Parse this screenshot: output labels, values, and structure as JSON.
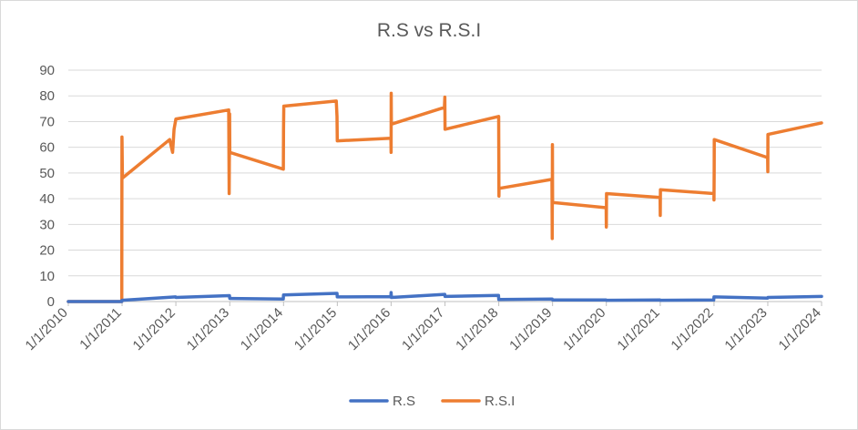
{
  "chart_data": {
    "type": "line",
    "title": "R.S vs R.S.I",
    "xlabel": "",
    "ylabel": "",
    "ylim": [
      0,
      90
    ],
    "yticks": [
      0,
      10,
      20,
      30,
      40,
      50,
      60,
      70,
      80,
      90
    ],
    "xlim": [
      "1/1/2010",
      "1/1/2024"
    ],
    "xticks": [
      "1/1/2010",
      "1/1/2011",
      "1/1/2012",
      "1/1/2013",
      "1/1/2014",
      "1/1/2015",
      "1/1/2016",
      "1/1/2017",
      "1/1/2018",
      "1/1/2019",
      "1/1/2020",
      "1/1/2021",
      "1/1/2022",
      "1/1/2023",
      "1/1/2024"
    ],
    "grid": true,
    "legend": "bottom",
    "colors": {
      "R.S": "#4472c4",
      "R.S.I": "#ed7d31",
      "grid": "#d9d9d9",
      "text": "#595959"
    },
    "series": [
      {
        "name": "R.S",
        "points": [
          [
            "1/1/2010",
            0
          ],
          [
            "12/30/2010",
            0
          ],
          [
            "1/1/2011",
            0.5
          ],
          [
            "12/30/2011",
            1.8
          ],
          [
            "1/1/2012",
            1.6
          ],
          [
            "12/30/2012",
            2.3
          ],
          [
            "1/1/2013",
            1.2
          ],
          [
            "12/30/2013",
            1.0
          ],
          [
            "1/1/2014",
            2.6
          ],
          [
            "12/30/2014",
            3.2
          ],
          [
            "1/1/2015",
            1.8
          ],
          [
            "12/30/2015",
            1.9
          ],
          [
            "1/1/2016",
            3.5
          ],
          [
            "1/3/2016",
            1.6
          ],
          [
            "12/30/2016",
            2.8
          ],
          [
            "1/1/2017",
            2.0
          ],
          [
            "12/30/2017",
            2.4
          ],
          [
            "1/1/2018",
            0.8
          ],
          [
            "12/30/2018",
            1.0
          ],
          [
            "1/1/2019",
            0.6
          ],
          [
            "12/30/2019",
            0.6
          ],
          [
            "1/1/2020",
            0.5
          ],
          [
            "12/30/2020",
            0.6
          ],
          [
            "1/1/2021",
            0.5
          ],
          [
            "12/30/2021",
            0.6
          ],
          [
            "1/1/2022",
            1.8
          ],
          [
            "12/30/2022",
            1.3
          ],
          [
            "1/1/2023",
            1.6
          ],
          [
            "1/1/2024",
            2.0
          ]
        ]
      },
      {
        "name": "R.S.I",
        "points": [
          [
            "1/1/2010",
            0
          ],
          [
            "12/30/2010",
            0
          ],
          [
            "12/31/2010",
            64
          ],
          [
            "1/1/2011",
            62
          ],
          [
            "1/3/2011",
            48
          ],
          [
            "11/20/2011",
            63
          ],
          [
            "12/10/2011",
            58
          ],
          [
            "12/20/2011",
            67
          ],
          [
            "1/1/2012",
            71
          ],
          [
            "12/25/2012",
            74.5
          ],
          [
            "12/28/2012",
            42
          ],
          [
            "12/31/2012",
            73
          ],
          [
            "1/1/2013",
            58
          ],
          [
            "12/31/2013",
            51.5
          ],
          [
            "1/1/2014",
            67
          ],
          [
            "1/3/2014",
            76
          ],
          [
            "12/25/2014",
            78
          ],
          [
            "12/30/2014",
            72
          ],
          [
            "1/1/2015",
            62.5
          ],
          [
            "12/31/2015",
            63.5
          ],
          [
            "1/1/2016",
            58
          ],
          [
            "1/2/2016",
            81
          ],
          [
            "1/3/2016",
            69
          ],
          [
            "12/28/2016",
            75.5
          ],
          [
            "12/31/2016",
            79.5
          ],
          [
            "1/1/2017",
            67
          ],
          [
            "12/31/2017",
            72
          ],
          [
            "1/1/2018",
            61
          ],
          [
            "1/2/2018",
            41
          ],
          [
            "1/3/2018",
            44
          ],
          [
            "12/28/2018",
            47.5
          ],
          [
            "12/30/2018",
            24.5
          ],
          [
            "12/31/2018",
            61
          ],
          [
            "1/1/2019",
            38.5
          ],
          [
            "12/31/2019",
            36.5
          ],
          [
            "1/1/2020",
            29
          ],
          [
            "1/2/2020",
            42
          ],
          [
            "12/31/2020",
            40.5
          ],
          [
            "1/1/2021",
            33.5
          ],
          [
            "1/2/2021",
            43.5
          ],
          [
            "12/31/2021",
            42
          ],
          [
            "1/1/2022",
            39.5
          ],
          [
            "1/2/2022",
            51
          ],
          [
            "1/3/2022",
            63
          ],
          [
            "12/31/2022",
            56
          ],
          [
            "1/1/2023",
            50.5
          ],
          [
            "1/2/2023",
            65
          ],
          [
            "1/1/2024",
            69.5
          ]
        ]
      }
    ]
  }
}
